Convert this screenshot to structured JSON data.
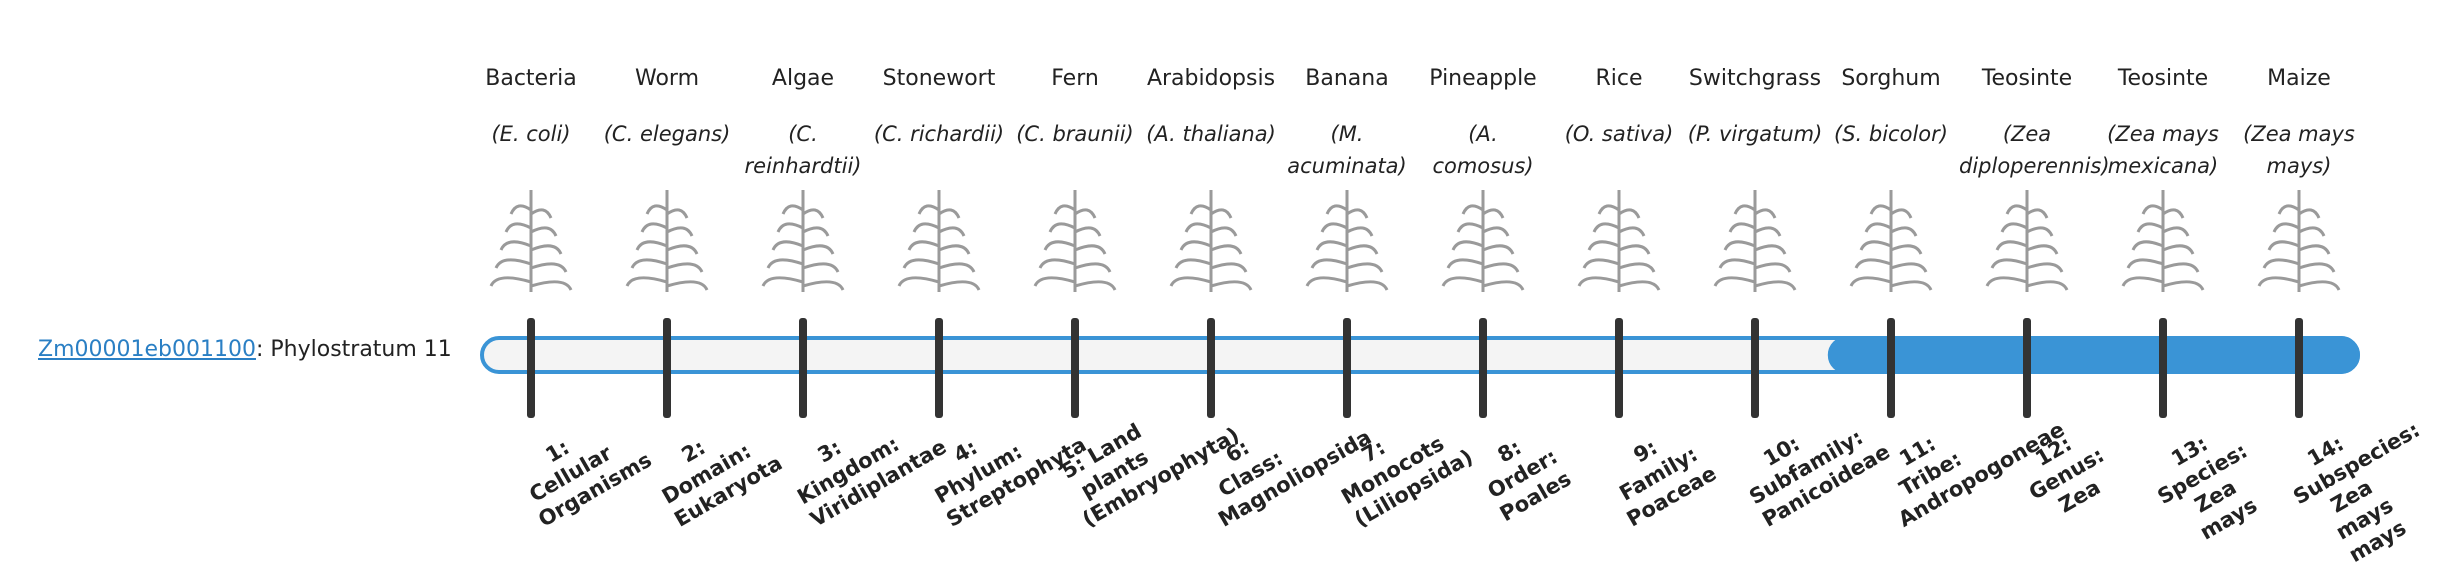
{
  "gene": {
    "id": "Zm00001eb001100",
    "text": ": Phylostratum 11",
    "filled_from_stratum": 11
  },
  "strata": [
    {
      "name": "Bacteria",
      "species": "(E. coli)",
      "rank": "1: Cellular Organisms"
    },
    {
      "name": "Worm",
      "species": "(C. elegans)",
      "rank": "2: Domain: Eukaryota"
    },
    {
      "name": "Algae",
      "species": "(C. reinhardtii)",
      "rank": "3: Kingdom: Viridiplantae"
    },
    {
      "name": "Stonewort",
      "species": "(C. richardii)",
      "rank": "4: Phylum: Streptophyta"
    },
    {
      "name": "Fern",
      "species": "(C. braunii)",
      "rank": "5: Land plants (Embryophyta)"
    },
    {
      "name": "Arabidopsis",
      "species": "(A. thaliana)",
      "rank": "6: Class: Magnoliopsida"
    },
    {
      "name": "Banana",
      "species": "(M. acuminata)",
      "rank": "7: Monocots (Liliopsida)"
    },
    {
      "name": "Pineapple",
      "species": "(A. comosus)",
      "rank": "8: Order: Poales"
    },
    {
      "name": "Rice",
      "species": "(O. sativa)",
      "rank": "9: Family: Poaceae"
    },
    {
      "name": "Switchgrass",
      "species": "(P. virgatum)",
      "rank": "10: Subfamily: Panicoideae"
    },
    {
      "name": "Sorghum",
      "species": "(S. bicolor)",
      "rank": "11: Tribe: Andropogoneae"
    },
    {
      "name": "Teosinte",
      "species": "(Zea diploperennis)",
      "rank": "12: Genus: Zea"
    },
    {
      "name": "Teosinte",
      "species": "(Zea mays mexicana)",
      "rank": "13: Species: Zea mays"
    },
    {
      "name": "Maize",
      "species": "(Zea mays mays)",
      "rank": "14: Subspecies: Zea mays mays"
    }
  ]
}
